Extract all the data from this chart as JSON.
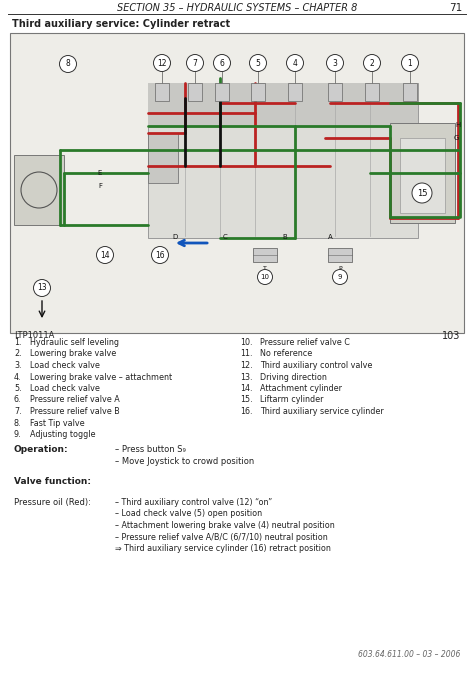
{
  "header_text": "SECTION 35 – HYDRAULIC SYSTEMS – CHAPTER 8",
  "page_number": "71",
  "diagram_label": "Third auxiliary service: Cylinder retract",
  "diagram_ref": "LTP1011A",
  "diagram_page": "103",
  "items_left": [
    [
      "1.",
      "Hydraulic self leveling"
    ],
    [
      "2.",
      "Lowering brake valve"
    ],
    [
      "3.",
      "Load check valve"
    ],
    [
      "4.",
      "Lowering brake valve – attachment"
    ],
    [
      "5.",
      "Load check valve"
    ],
    [
      "6.",
      "Pressure relief valve A"
    ],
    [
      "7.",
      "Pressure relief valve B"
    ],
    [
      "8.",
      "Fast Tip valve"
    ],
    [
      "9.",
      "Adjusting toggle"
    ]
  ],
  "items_right": [
    [
      "10.",
      "Pressure relief valve C"
    ],
    [
      "11.",
      "No reference"
    ],
    [
      "12.",
      "Third auxiliary control valve"
    ],
    [
      "13.",
      "Driving direction"
    ],
    [
      "14.",
      "Attachment cylinder"
    ],
    [
      "15.",
      "Liftarm cylinder"
    ],
    [
      "16.",
      "Third auxiliary service cylinder"
    ]
  ],
  "operation_label": "Operation:",
  "operation_lines": [
    "– Press button S₉",
    "– Move Joystick to crowd position"
  ],
  "valve_label": "Valve function:",
  "pressure_label": "Pressure oil (Red):",
  "pressure_lines": [
    "– Third auxiliary control valve (12) “on”",
    "– Load check valve (5) open position",
    "– Attachment lowering brake valve (4) neutral position",
    "– Pressure relief valve A/B/C (6/7/10) neutral position",
    "⇒ Third auxiliary service cylinder (16) retract position"
  ],
  "footer_text": "603.64.611.00 – 03 – 2006",
  "bg_color": "#ffffff",
  "text_color": "#222222",
  "diagram_bg": "#eeede8",
  "RED": "#bb2222",
  "GREEN": "#2a7a2a",
  "BLACK": "#111111",
  "BLUE": "#1155bb"
}
